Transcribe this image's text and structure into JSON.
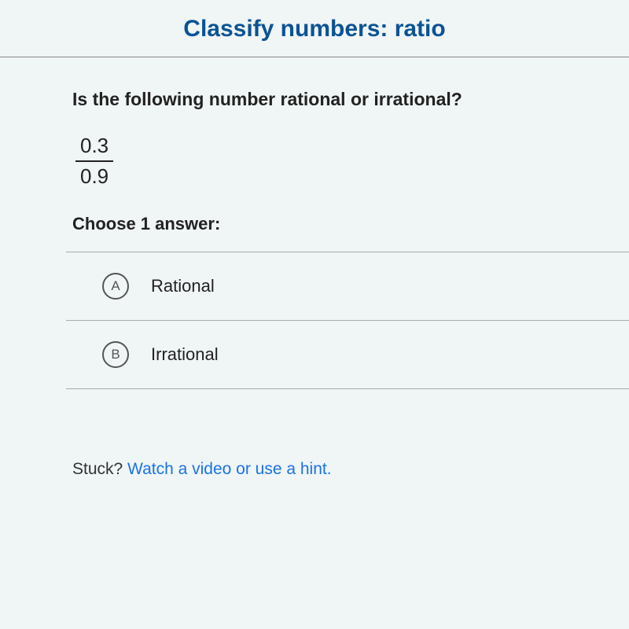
{
  "header": {
    "title": "Classify numbers: ratio"
  },
  "question": {
    "prompt": "Is the following number rational or irrational?",
    "fraction": {
      "numerator": "0.3",
      "denominator": "0.9"
    },
    "choose": "Choose 1 answer:"
  },
  "options": [
    {
      "letter": "A",
      "label": "Rational"
    },
    {
      "letter": "B",
      "label": "Irrational"
    }
  ],
  "stuck": {
    "prefix": "Stuck? ",
    "link": "Watch a video or use a hint."
  },
  "colors": {
    "title_text": "#0b5394",
    "body_text": "#222222",
    "option_border": "#aaaaaa",
    "letter_border": "#555555",
    "link_text": "#1a73e8",
    "background": "#f0f5f5"
  }
}
